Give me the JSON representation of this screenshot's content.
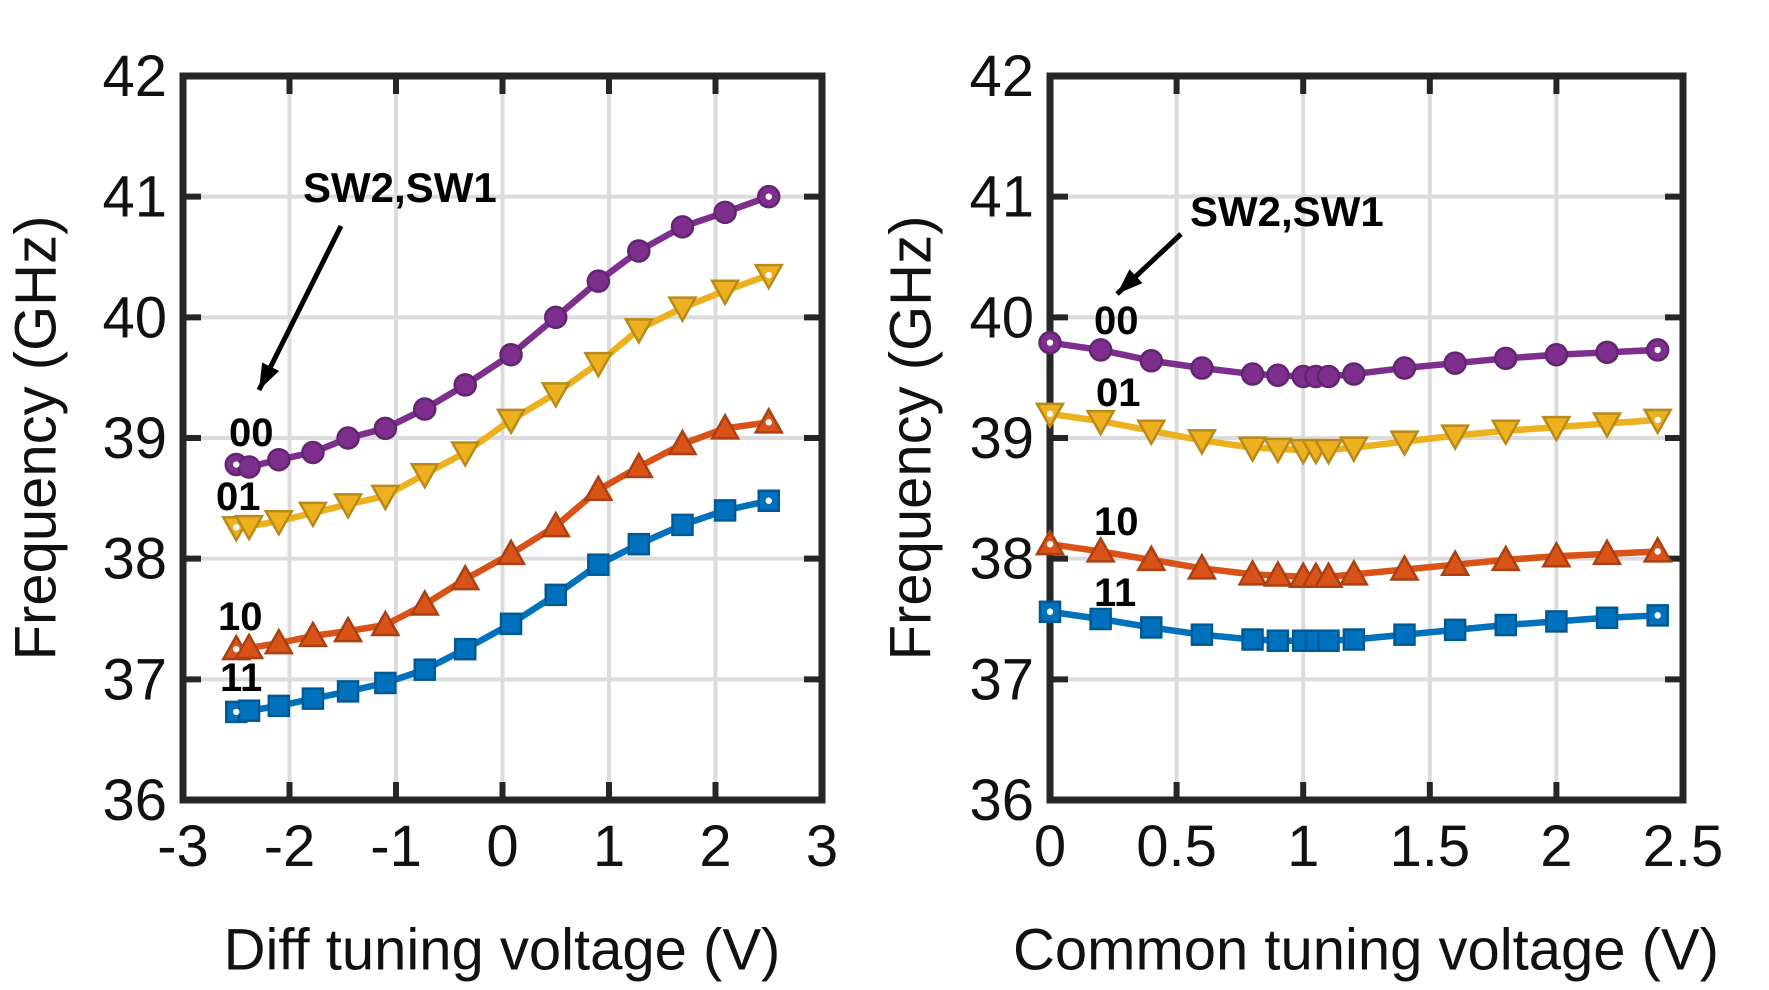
{
  "figure": {
    "background": "#ffffff",
    "axis_color": "#262626",
    "grid_color": "#dcdcdc"
  },
  "chart_data": [
    {
      "type": "line",
      "title": "",
      "xlabel": "Diff tuning voltage (V)",
      "ylabel": "Frequency (GHz)",
      "annotation": "SW2,SW1",
      "xlim": [
        -3,
        3
      ],
      "ylim": [
        36,
        42
      ],
      "grid": true,
      "legend": "none",
      "xticks": [
        -3,
        -2,
        -1,
        0,
        1,
        2,
        3
      ],
      "xtick_labels": [
        "-3",
        "-2",
        "-1",
        "0",
        "1",
        "2",
        "3"
      ],
      "yticks": [
        36,
        37,
        38,
        39,
        40,
        41,
        42
      ],
      "ytick_labels": [
        "36",
        "37",
        "38",
        "39",
        "40",
        "41",
        "42"
      ],
      "x": [
        -2.5,
        -2.38,
        -2.1,
        -1.78,
        -1.45,
        -1.1,
        -0.73,
        -0.35,
        0.08,
        0.5,
        0.9,
        1.28,
        1.69,
        2.09,
        2.5
      ],
      "series": [
        {
          "name": "00",
          "marker": "circle",
          "color": "#7E2F8E",
          "values": [
            38.78,
            38.76,
            38.82,
            38.88,
            39.0,
            39.08,
            39.24,
            39.44,
            39.69,
            40.0,
            40.3,
            40.55,
            40.75,
            40.87,
            41.0
          ]
        },
        {
          "name": "01",
          "marker": "triangle-down",
          "color": "#EDB120",
          "values": [
            38.26,
            38.27,
            38.31,
            38.38,
            38.45,
            38.52,
            38.7,
            38.88,
            39.15,
            39.37,
            39.62,
            39.9,
            40.08,
            40.22,
            40.35
          ]
        },
        {
          "name": "10",
          "marker": "triangle-up",
          "color": "#D95319",
          "values": [
            37.25,
            37.26,
            37.3,
            37.36,
            37.4,
            37.45,
            37.62,
            37.83,
            38.04,
            38.27,
            38.57,
            38.76,
            38.95,
            39.08,
            39.13
          ]
        },
        {
          "name": "11",
          "marker": "square",
          "color": "#0072BD",
          "values": [
            36.73,
            36.74,
            36.78,
            36.84,
            36.9,
            36.97,
            37.08,
            37.25,
            37.46,
            37.7,
            37.95,
            38.12,
            38.28,
            38.4,
            38.48
          ]
        }
      ]
    },
    {
      "type": "line",
      "title": "",
      "xlabel": "Common tuning voltage (V)",
      "ylabel": "Frequency (GHz)",
      "annotation": "SW2,SW1",
      "xlim": [
        0,
        2.5
      ],
      "ylim": [
        36,
        42
      ],
      "grid": true,
      "legend": "none",
      "xticks": [
        0,
        0.5,
        1,
        1.5,
        2,
        2.5
      ],
      "xtick_labels": [
        "0",
        "0.5",
        "1",
        "1.5",
        "2",
        "2.5"
      ],
      "yticks": [
        36,
        37,
        38,
        39,
        40,
        41,
        42
      ],
      "ytick_labels": [
        "36",
        "37",
        "38",
        "39",
        "40",
        "41",
        "42"
      ],
      "x": [
        0,
        0.2,
        0.4,
        0.6,
        0.8,
        0.9,
        1.0,
        1.05,
        1.1,
        1.2,
        1.4,
        1.6,
        1.8,
        2.0,
        2.2,
        2.4
      ],
      "series": [
        {
          "name": "00",
          "marker": "circle",
          "color": "#7E2F8E",
          "values": [
            39.79,
            39.73,
            39.64,
            39.58,
            39.53,
            39.52,
            39.51,
            39.51,
            39.51,
            39.53,
            39.58,
            39.62,
            39.66,
            39.69,
            39.71,
            39.73
          ]
        },
        {
          "name": "01",
          "marker": "triangle-down",
          "color": "#EDB120",
          "values": [
            39.2,
            39.14,
            39.06,
            38.98,
            38.92,
            38.91,
            38.9,
            38.9,
            38.9,
            38.92,
            38.97,
            39.02,
            39.06,
            39.09,
            39.12,
            39.15
          ]
        },
        {
          "name": "10",
          "marker": "triangle-up",
          "color": "#D95319",
          "values": [
            38.12,
            38.06,
            37.99,
            37.92,
            37.87,
            37.86,
            37.85,
            37.85,
            37.85,
            37.87,
            37.91,
            37.95,
            37.99,
            38.02,
            38.04,
            38.06
          ]
        },
        {
          "name": "11",
          "marker": "square",
          "color": "#0072BD",
          "values": [
            37.56,
            37.5,
            37.43,
            37.37,
            37.33,
            37.32,
            37.32,
            37.32,
            37.32,
            37.33,
            37.37,
            37.41,
            37.45,
            37.48,
            37.51,
            37.53
          ]
        }
      ]
    }
  ]
}
